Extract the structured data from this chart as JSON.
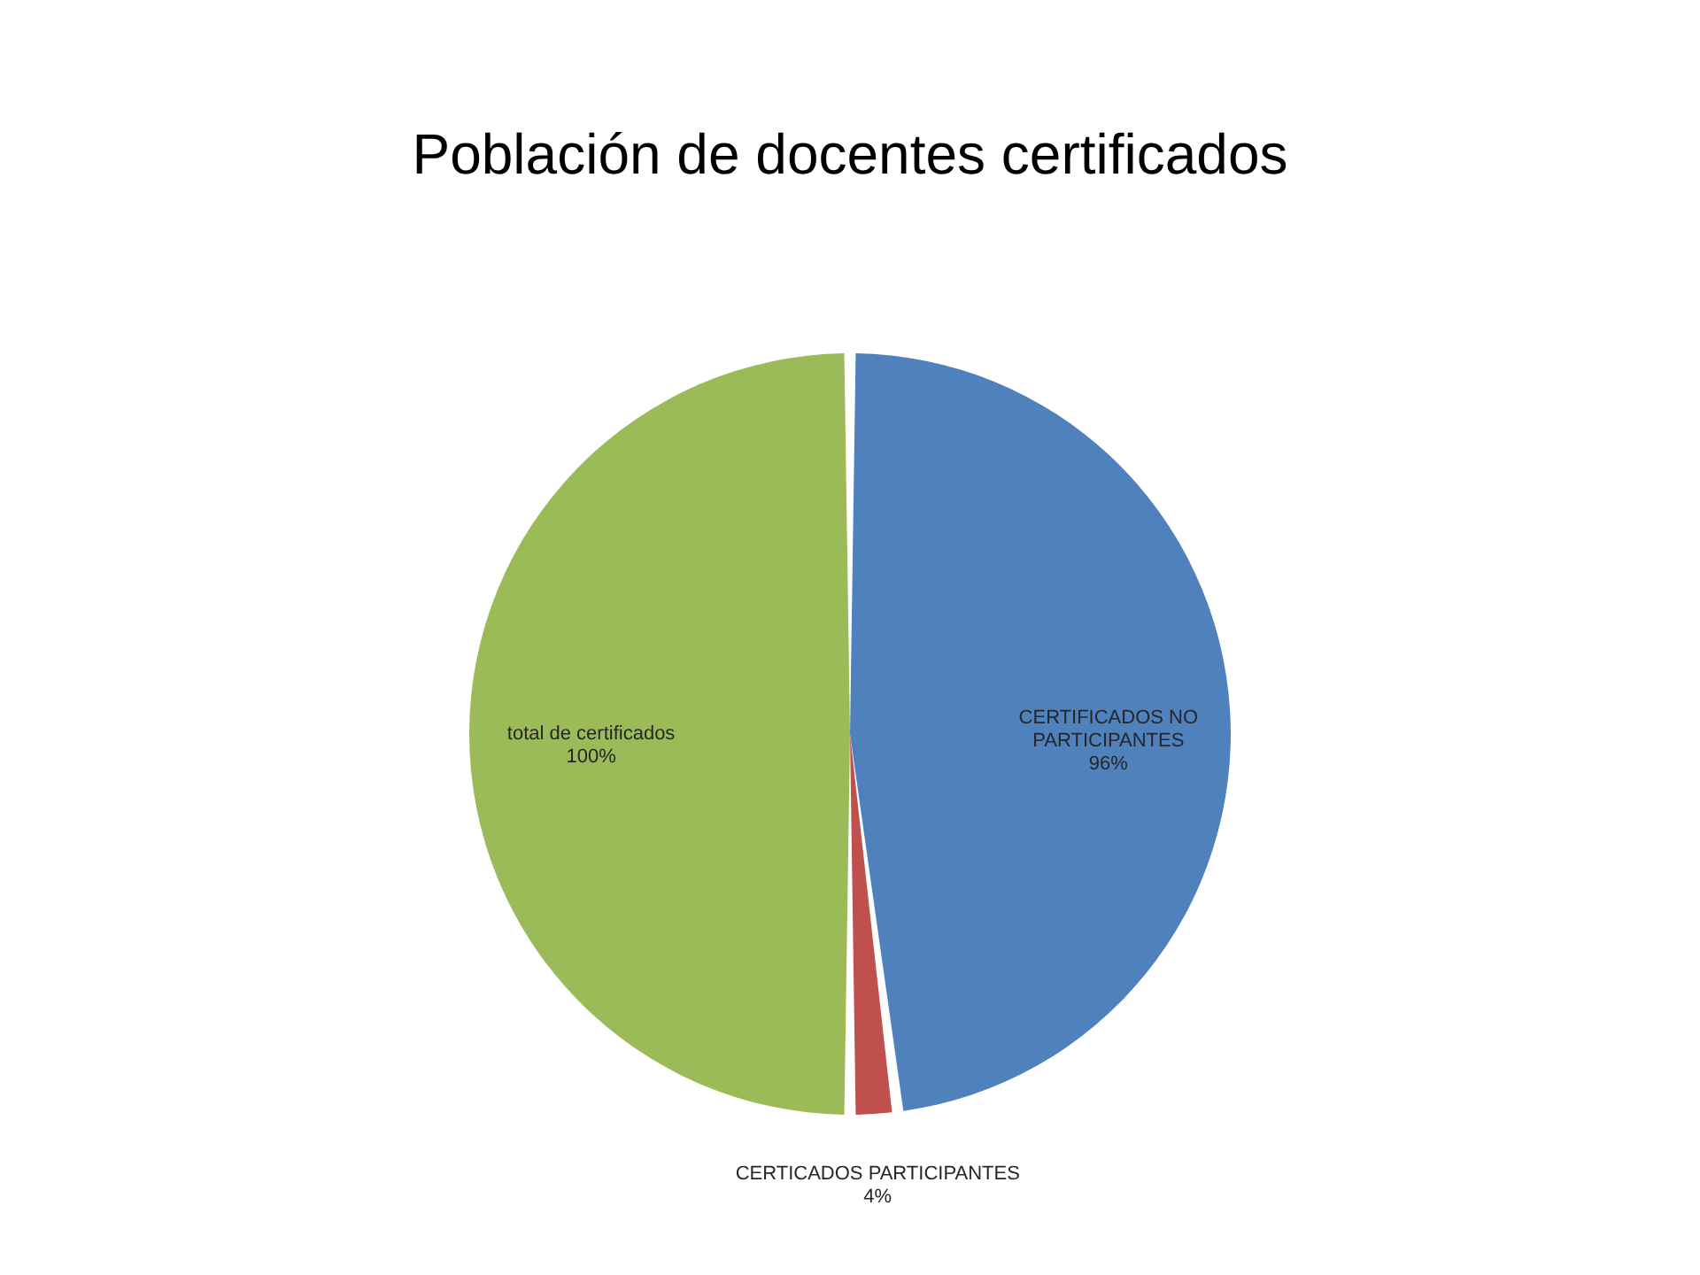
{
  "chart_data": {
    "type": "pie",
    "title": "Población de docentes certificados",
    "categories": [
      "CERTIFICADOS NO PARTICIPANTES",
      "CERTICADOS PARTICIPANTES",
      "total de certificados"
    ],
    "values": [
      96,
      4,
      100
    ],
    "colors": [
      "#4f81bd",
      "#c0504d",
      "#9bbb59"
    ],
    "value_labels": [
      "96%",
      "4%",
      "100%"
    ],
    "legend": false
  }
}
